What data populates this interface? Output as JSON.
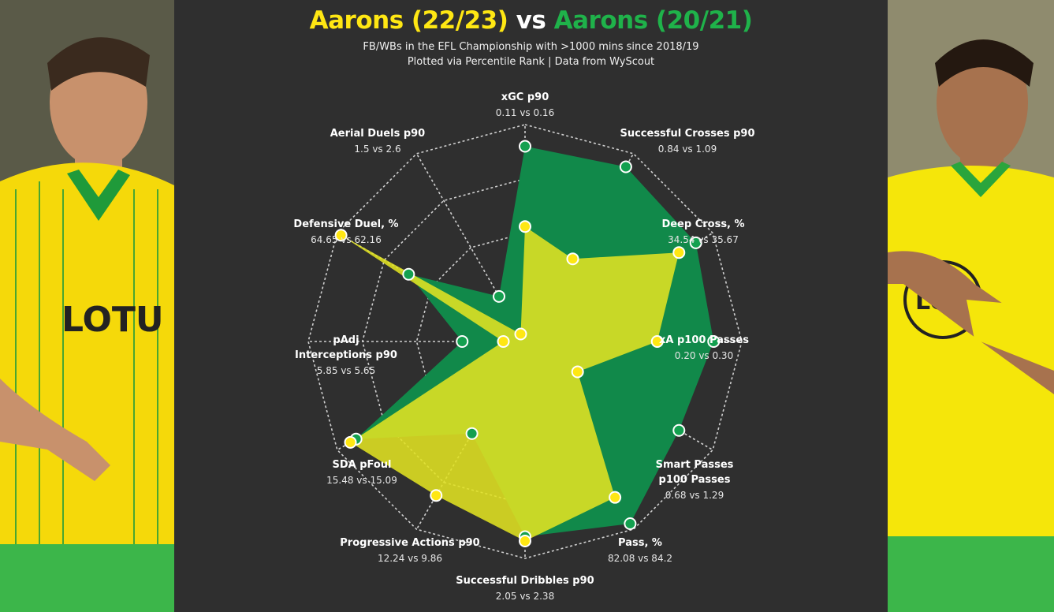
{
  "header": {
    "title_a": "Aarons (22/23)",
    "title_vs": " vs ",
    "title_b": "Aarons (20/21)",
    "subtitle_1": "FB/WBs in the EFL Championship with >1000 mins since 2018/19",
    "subtitle_2": "Plotted via Percentile Rank | Data from WyScout"
  },
  "colors": {
    "background": "#2f2f2f",
    "series_a": "#e1e222",
    "series_a_marker": "#ffe713",
    "series_b": "#11894a",
    "series_b_marker": "#13a04f",
    "grid": "#cfcfcf"
  },
  "photos": [
    {
      "side": "left",
      "label": "player-photo-22-23",
      "shirt": "#f5d90a",
      "trim": "#1f9a3a",
      "sponsor": "LOTU"
    },
    {
      "side": "right",
      "label": "player-photo-20-21",
      "shirt": "#f5e60a",
      "trim": "#2aa53c",
      "sponsor": "LO"
    }
  ],
  "chart_data": {
    "type": "radar",
    "rings": 4,
    "scale": [
      0,
      100
    ],
    "series": [
      {
        "name": "Aarons (22/23)",
        "values": [
          53,
          44,
          82,
          61,
          28,
          83,
          92,
          82,
          93,
          10,
          98,
          4
        ]
      },
      {
        "name": "Aarons (20/21)",
        "values": [
          90,
          93,
          91,
          87,
          82,
          97,
          90,
          49,
          90,
          29,
          62,
          24
        ]
      }
    ],
    "axes": [
      {
        "name": "xGC p90",
        "value": "0.11 vs 0.16"
      },
      {
        "name": "Successful Crosses p90",
        "value": "0.84 vs 1.09"
      },
      {
        "name": "Deep Cross, %",
        "value": "34.54 vs 35.67"
      },
      {
        "name": "xA p100 Passes",
        "value": "0.20 vs 0.30"
      },
      {
        "name": "Smart Passes p100 Passes",
        "value": "0.68 vs 1.29"
      },
      {
        "name": "Pass, %",
        "value": "82.08 vs 84.2"
      },
      {
        "name": "Successful Dribbles p90",
        "value": "2.05 vs 2.38"
      },
      {
        "name": "Progressive Actions p90",
        "value": "12.24 vs 9.86"
      },
      {
        "name": "SDA pFoul",
        "value": "15.48 vs 15.09"
      },
      {
        "name": "pAdj Interceptions p90",
        "value": "5.85 vs 5.65"
      },
      {
        "name": "Defensive Duel, %",
        "value": "64.65 vs 62.16"
      },
      {
        "name": "Aerial Duels p90",
        "value": "1.5 vs 2.6"
      }
    ]
  }
}
